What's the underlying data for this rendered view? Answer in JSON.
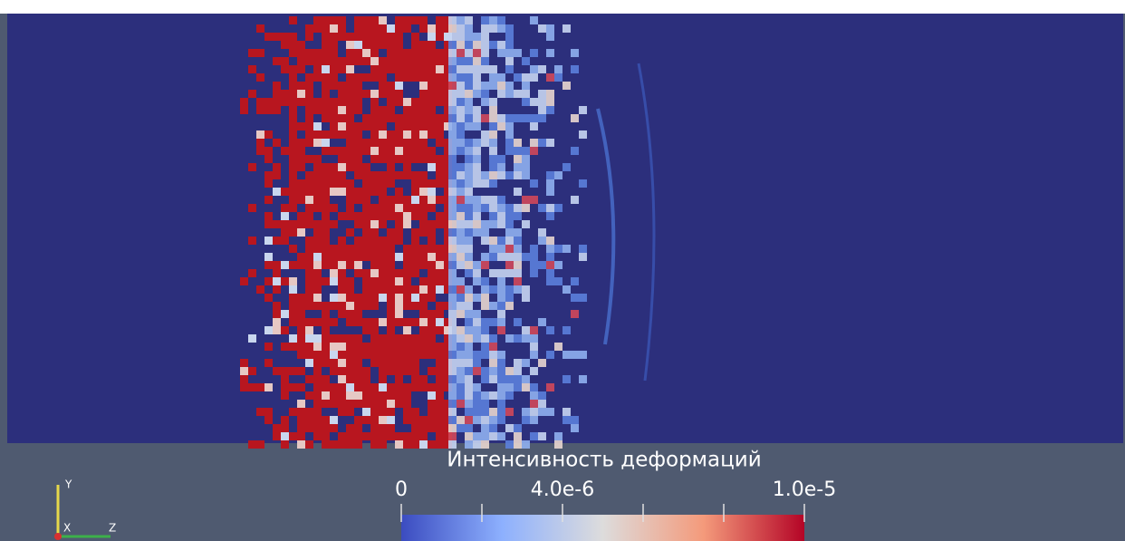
{
  "colorbar": {
    "title": "Интенсивность деформаций",
    "range": [
      0,
      1e-05
    ],
    "ticks": [
      0,
      {
        "value": 4e-06,
        "label": "4.0e-6"
      },
      {
        "value": 1e-05,
        "label": "1.0e-5"
      }
    ],
    "minor_ticks": [
      2e-06,
      6e-06,
      8e-06
    ]
  },
  "axes_triad": {
    "y": "Y",
    "x": "X",
    "z": "Z"
  }
}
